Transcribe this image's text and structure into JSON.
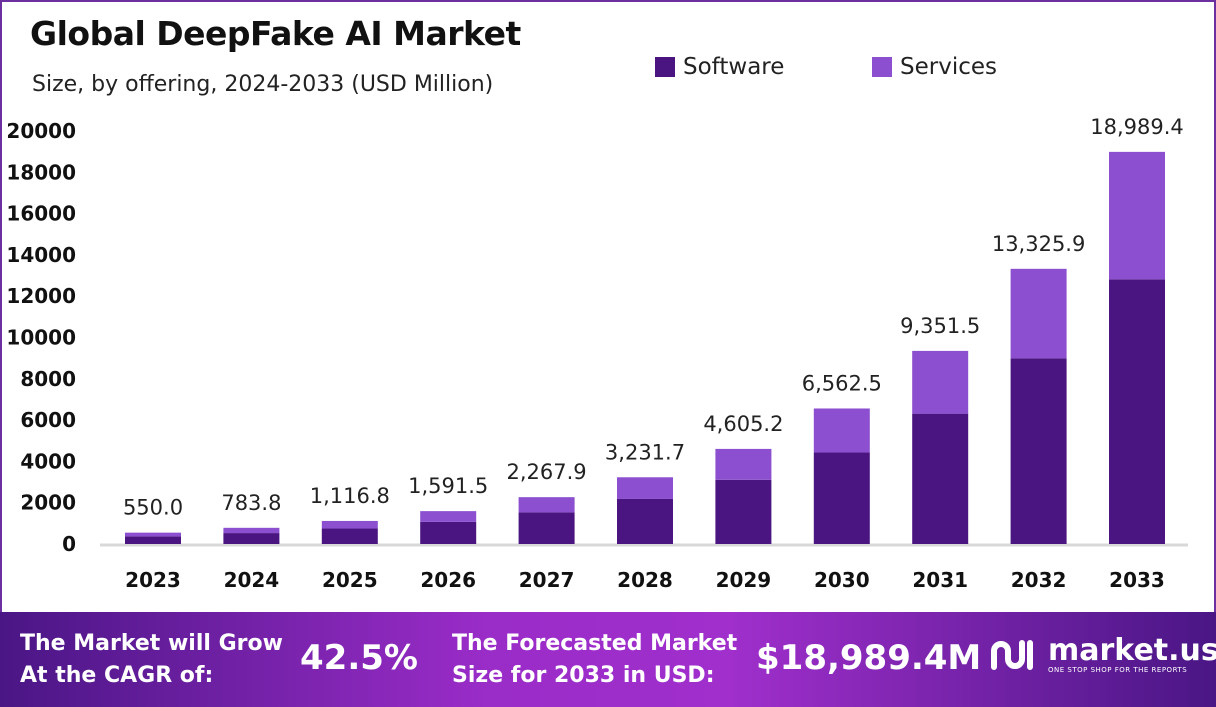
{
  "chart_data": {
    "type": "bar",
    "stacked": true,
    "title": "Global DeepFake AI Market",
    "subtitle": "Size, by offering, 2024-2033 (USD Million)",
    "categories": [
      "2023",
      "2024",
      "2025",
      "2026",
      "2027",
      "2028",
      "2029",
      "2030",
      "2031",
      "2032",
      "2033"
    ],
    "series": [
      {
        "name": "Software",
        "color": "#4a1580",
        "values": [
          371.3,
          529.1,
          753.8,
          1074.3,
          1530.8,
          2181.4,
          3108.5,
          4429.7,
          6312.3,
          8995.0,
          12817.8
        ]
      },
      {
        "name": "Services",
        "color": "#8b4fcf",
        "values": [
          178.7,
          254.7,
          363.0,
          517.2,
          737.1,
          1050.3,
          1496.7,
          2132.8,
          3039.2,
          4330.9,
          6171.6
        ]
      }
    ],
    "totals": [
      "550.0",
      "783.8",
      "1,116.8",
      "1,591.5",
      "2,267.9",
      "3,231.7",
      "4,605.2",
      "6,562.5",
      "9,351.5",
      "13,325.9",
      "18,989.4"
    ],
    "yticks": [
      0,
      2000,
      4000,
      6000,
      8000,
      10000,
      12000,
      14000,
      16000,
      18000,
      20000
    ],
    "ylim": [
      0,
      20000
    ],
    "grid": false,
    "legend_position": "top-right"
  },
  "footer": {
    "cagr_label": [
      "The Market will Grow",
      "At the CAGR of:"
    ],
    "cagr_value": "42.5%",
    "forecast_label": [
      "The Forecasted Market",
      "Size for 2033 in USD:"
    ],
    "forecast_value": "$18,989.4M",
    "logo_name": "market.us",
    "logo_tagline": "ONE STOP SHOP FOR THE REPORTS"
  }
}
